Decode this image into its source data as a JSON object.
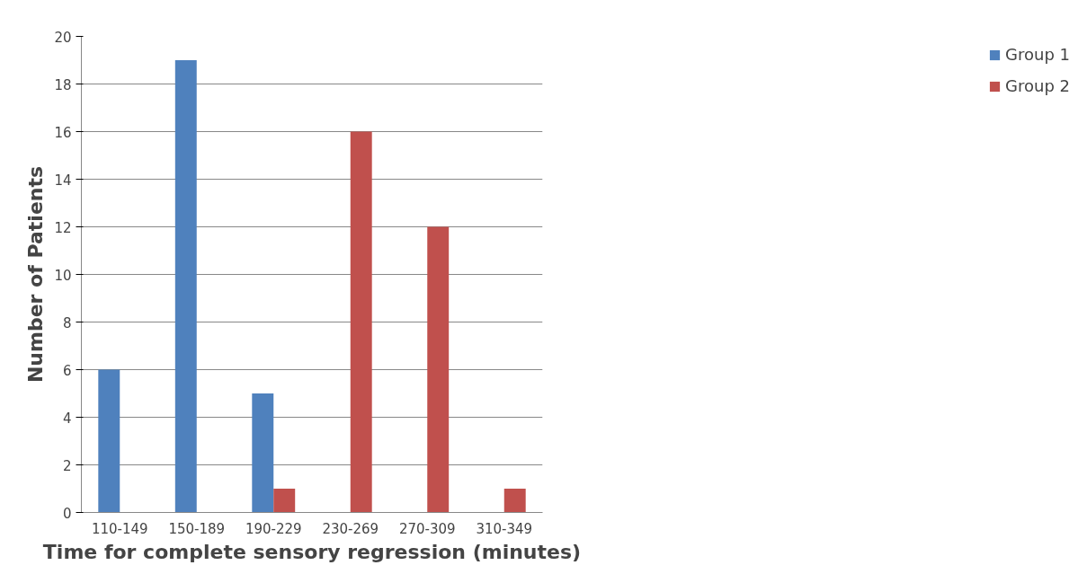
{
  "chart_data": {
    "type": "bar",
    "xlabel": "Time for complete sensory regression (minutes)",
    "ylabel": "Number of Patients",
    "categories": [
      "110-149",
      "150-189",
      "190-229",
      "230-269",
      "270-309",
      "310-349"
    ],
    "series": [
      {
        "name": "Group 1",
        "color": "#4f81bd",
        "values": [
          6,
          19,
          5,
          0,
          0,
          0
        ]
      },
      {
        "name": "Group 2",
        "color": "#c0504d",
        "values": [
          0,
          0,
          1,
          16,
          12,
          1
        ]
      }
    ],
    "ylim": [
      0,
      20
    ],
    "yticks": [
      0,
      2,
      4,
      6,
      8,
      10,
      12,
      14,
      16,
      18,
      20
    ],
    "grid": "y",
    "legend": "right"
  }
}
